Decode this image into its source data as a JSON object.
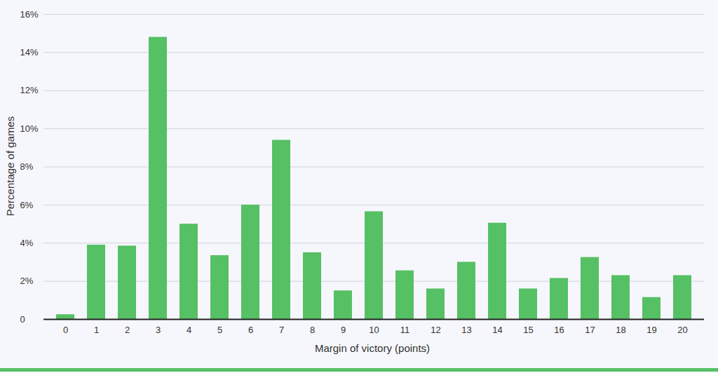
{
  "chart_data": {
    "type": "bar",
    "x_label": "Margin of victory (points)",
    "y_label": "Percentage of games",
    "categories": [
      "0",
      "1",
      "2",
      "3",
      "4",
      "5",
      "6",
      "7",
      "8",
      "9",
      "10",
      "11",
      "12",
      "13",
      "14",
      "15",
      "16",
      "17",
      "18",
      "19",
      "20"
    ],
    "values": [
      0.25,
      3.9,
      3.85,
      14.8,
      5.0,
      3.35,
      6.0,
      9.4,
      3.5,
      1.5,
      5.65,
      2.55,
      1.6,
      3.0,
      5.05,
      1.6,
      2.15,
      3.25,
      2.3,
      1.15,
      2.3
    ],
    "color": "#56c064",
    "ylim": [
      0,
      16
    ],
    "yticks": [
      0,
      {
        "value": 2,
        "label": "2%"
      },
      {
        "value": 4,
        "label": "4%"
      },
      {
        "value": 6,
        "label": "6%"
      },
      {
        "value": 8,
        "label": "8%"
      },
      {
        "value": 10,
        "label": "10%"
      },
      {
        "value": 12,
        "label": "12%"
      },
      {
        "value": 14,
        "label": "14%"
      },
      {
        "value": 16,
        "label": "16%"
      }
    ],
    "grid": true
  }
}
